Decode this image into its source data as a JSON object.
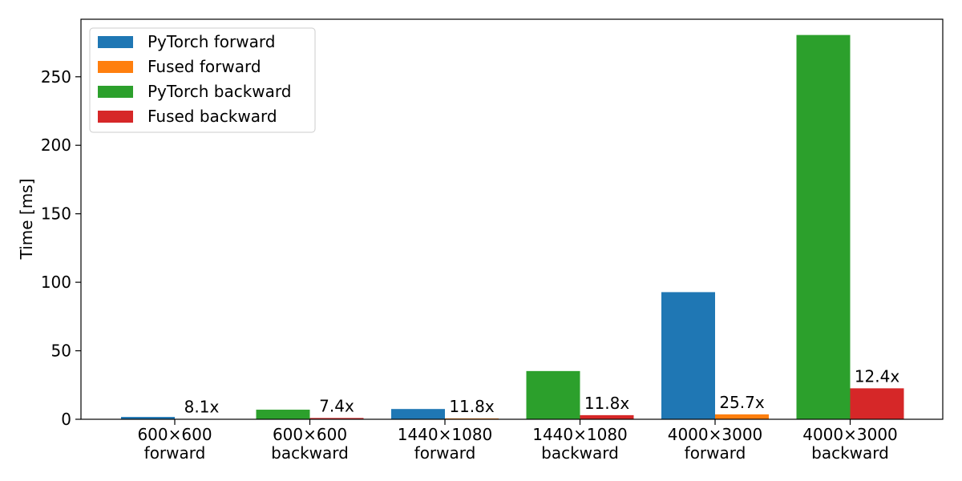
{
  "chart_data": {
    "type": "bar",
    "title": "",
    "xlabel": "",
    "ylabel": "Time [ms]",
    "ylim": [
      0,
      292
    ],
    "yticks": [
      0,
      50,
      100,
      150,
      200,
      250
    ],
    "grid": false,
    "legend_position": "top-left",
    "categories": [
      [
        "600×600",
        "forward"
      ],
      [
        "600×600",
        "backward"
      ],
      [
        "1440×1080",
        "forward"
      ],
      [
        "1440×1080",
        "backward"
      ],
      [
        "4000×3000",
        "forward"
      ],
      [
        "4000×3000",
        "backward"
      ]
    ],
    "groups": [
      {
        "baseline_series": 0,
        "fused_series": 1,
        "baseline": 1.7,
        "fused": 0.21,
        "speedup_label": "8.1x"
      },
      {
        "baseline_series": 2,
        "fused_series": 3,
        "baseline": 7.0,
        "fused": 0.95,
        "speedup_label": "7.4x"
      },
      {
        "baseline_series": 0,
        "fused_series": 1,
        "baseline": 7.5,
        "fused": 0.64,
        "speedup_label": "11.8x"
      },
      {
        "baseline_series": 2,
        "fused_series": 3,
        "baseline": 35.2,
        "fused": 3.0,
        "speedup_label": "11.8x"
      },
      {
        "baseline_series": 0,
        "fused_series": 1,
        "baseline": 92.8,
        "fused": 3.6,
        "speedup_label": "25.7x"
      },
      {
        "baseline_series": 2,
        "fused_series": 3,
        "baseline": 280.5,
        "fused": 22.6,
        "speedup_label": "12.4x"
      }
    ],
    "series": [
      {
        "name": "PyTorch forward",
        "color": "#1f77b4"
      },
      {
        "name": "Fused forward",
        "color": "#ff7f0e"
      },
      {
        "name": "PyTorch backward",
        "color": "#2ca02c"
      },
      {
        "name": "Fused backward",
        "color": "#d62728"
      }
    ]
  }
}
